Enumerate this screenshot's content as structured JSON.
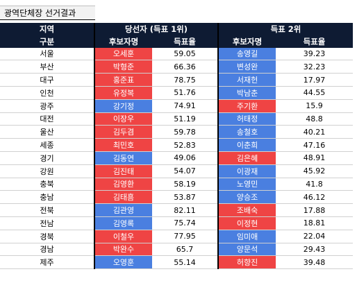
{
  "sheet_title": "광역단체장 선거결과",
  "header": {
    "region": "지역",
    "group": "구분",
    "winner_group": "당선자 (득표 1위)",
    "runner_group": "득표 2위",
    "candidate": "후보자명",
    "vote_rate": "득표율"
  },
  "colors": {
    "header_bg": "#0e1b33",
    "blue_party": "#4a7fe0",
    "red_party": "#ef4444"
  },
  "rows": [
    {
      "region": "서울",
      "w_name": "오세훈",
      "w_party": "red",
      "w_rate": "59.05",
      "r_name": "송영길",
      "r_party": "blue",
      "r_rate": "39.23"
    },
    {
      "region": "부산",
      "w_name": "박형준",
      "w_party": "red",
      "w_rate": "66.36",
      "r_name": "변성완",
      "r_party": "blue",
      "r_rate": "32.23"
    },
    {
      "region": "대구",
      "w_name": "홍준표",
      "w_party": "red",
      "w_rate": "78.75",
      "r_name": "서재헌",
      "r_party": "blue",
      "r_rate": "17.97"
    },
    {
      "region": "인천",
      "w_name": "유정복",
      "w_party": "red",
      "w_rate": "51.76",
      "r_name": "박남춘",
      "r_party": "blue",
      "r_rate": "44.55"
    },
    {
      "region": "광주",
      "w_name": "강기정",
      "w_party": "blue",
      "w_rate": "74.91",
      "r_name": "주기환",
      "r_party": "red",
      "r_rate": "15.9"
    },
    {
      "region": "대전",
      "w_name": "이장우",
      "w_party": "red",
      "w_rate": "51.19",
      "r_name": "허태정",
      "r_party": "blue",
      "r_rate": "48.8"
    },
    {
      "region": "울산",
      "w_name": "김두겸",
      "w_party": "red",
      "w_rate": "59.78",
      "r_name": "송철호",
      "r_party": "blue",
      "r_rate": "40.21"
    },
    {
      "region": "세종",
      "w_name": "최민호",
      "w_party": "red",
      "w_rate": "52.83",
      "r_name": "이춘희",
      "r_party": "blue",
      "r_rate": "47.16"
    },
    {
      "region": "경기",
      "w_name": "김동연",
      "w_party": "blue",
      "w_rate": "49.06",
      "r_name": "김은혜",
      "r_party": "red",
      "r_rate": "48.91"
    },
    {
      "region": "강원",
      "w_name": "김진태",
      "w_party": "red",
      "w_rate": "54.07",
      "r_name": "이광재",
      "r_party": "blue",
      "r_rate": "45.92"
    },
    {
      "region": "충북",
      "w_name": "김영환",
      "w_party": "red",
      "w_rate": "58.19",
      "r_name": "노영민",
      "r_party": "blue",
      "r_rate": "41.8"
    },
    {
      "region": "충남",
      "w_name": "김태흠",
      "w_party": "red",
      "w_rate": "53.87",
      "r_name": "양승조",
      "r_party": "blue",
      "r_rate": "46.12"
    },
    {
      "region": "전북",
      "w_name": "김관영",
      "w_party": "blue",
      "w_rate": "82.11",
      "r_name": "조배숙",
      "r_party": "red",
      "r_rate": "17.88"
    },
    {
      "region": "전남",
      "w_name": "김영록",
      "w_party": "blue",
      "w_rate": "75.74",
      "r_name": "이정현",
      "r_party": "red",
      "r_rate": "18.81"
    },
    {
      "region": "경북",
      "w_name": "이철우",
      "w_party": "red",
      "w_rate": "77.95",
      "r_name": "임미애",
      "r_party": "blue",
      "r_rate": "22.04"
    },
    {
      "region": "경남",
      "w_name": "박완수",
      "w_party": "red",
      "w_rate": "65.7",
      "r_name": "양문석",
      "r_party": "blue",
      "r_rate": "29.43"
    },
    {
      "region": "제주",
      "w_name": "오영훈",
      "w_party": "blue",
      "w_rate": "55.14",
      "r_name": "허향진",
      "r_party": "red",
      "r_rate": "39.48"
    }
  ]
}
